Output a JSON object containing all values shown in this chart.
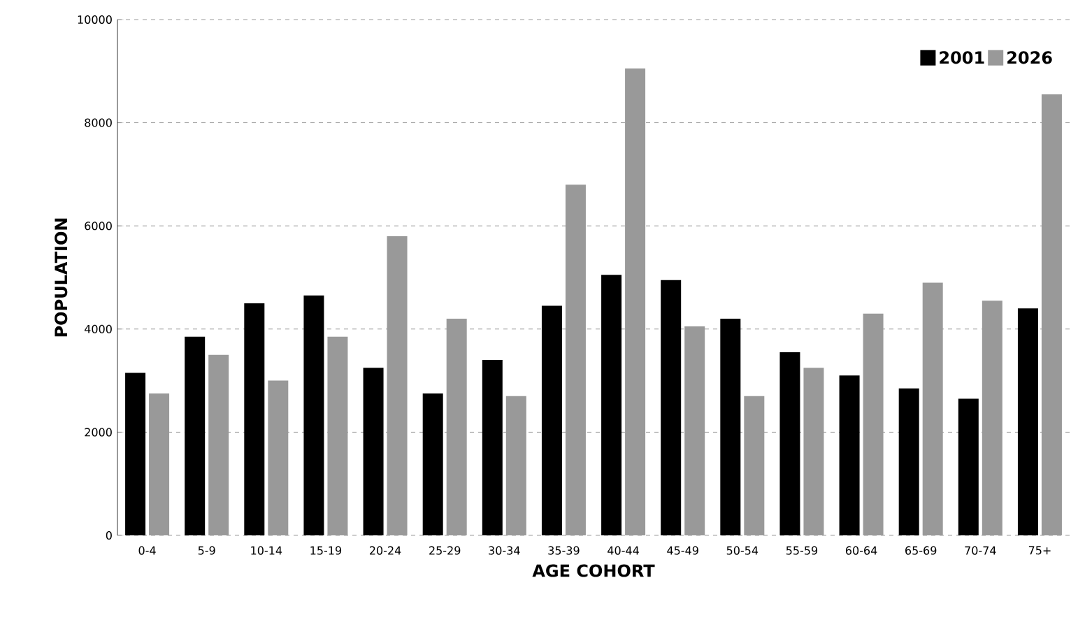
{
  "chart_data": {
    "type": "bar",
    "xlabel": "AGE COHORT",
    "ylabel": "POPULATION",
    "categories": [
      "0-4",
      "5-9",
      "10-14",
      "15-19",
      "20-24",
      "25-29",
      "30-34",
      "35-39",
      "40-44",
      "45-49",
      "50-54",
      "55-59",
      "60-64",
      "65-69",
      "70-74",
      "75+"
    ],
    "series": [
      {
        "name": "2001",
        "color": "#000000",
        "values": [
          3150,
          3850,
          4500,
          4650,
          3250,
          2750,
          3400,
          4450,
          5050,
          4950,
          4200,
          3550,
          3100,
          2850,
          2650,
          4400
        ]
      },
      {
        "name": "2026",
        "color": "#999999",
        "values": [
          2750,
          3500,
          3000,
          3850,
          5800,
          4200,
          2700,
          6800,
          9050,
          4050,
          2700,
          3250,
          4300,
          4900,
          4550,
          8550
        ]
      }
    ],
    "ylim": [
      0,
      10000
    ],
    "yticks": [
      0,
      2000,
      4000,
      6000,
      8000,
      10000
    ],
    "grid": "y",
    "legend": "top right"
  }
}
